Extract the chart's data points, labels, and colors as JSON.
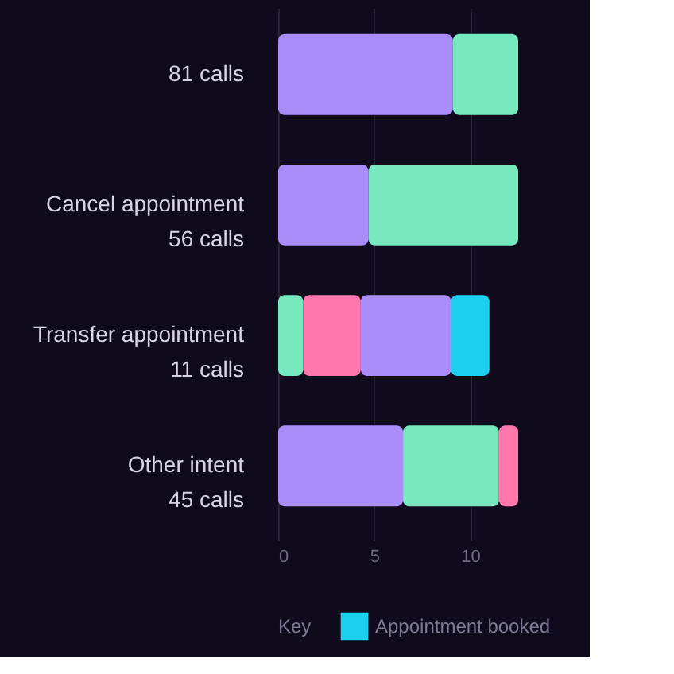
{
  "chart_data": {
    "type": "bar",
    "orientation": "horizontal",
    "stacked": true,
    "categories": [
      "81 calls",
      "Cancel appointment\n56 calls",
      "Transfer appointment\n11 calls",
      "Other intent\n45 calls"
    ],
    "series": [
      {
        "color": "#78e8be",
        "values": [
          null,
          null,
          1.3,
          null
        ]
      },
      {
        "color": "#ff77ad",
        "values": [
          null,
          null,
          3.0,
          null
        ]
      },
      {
        "color": "#a98cf8",
        "values": [
          9.1,
          4.7,
          4.7,
          6.5
        ]
      },
      {
        "color": "#78e8be",
        "values": [
          3.4,
          7.8,
          null,
          5.0
        ]
      },
      {
        "color": "#ff77ad",
        "values": [
          null,
          null,
          null,
          1.0
        ]
      },
      {
        "name": "Appointment booked",
        "color": "#1ed0f0",
        "values": [
          null,
          null,
          2.0,
          null
        ]
      }
    ],
    "xlim": [
      0,
      12.5
    ],
    "xticks": [
      0,
      5,
      10
    ],
    "grid": "x",
    "legend": "bottom",
    "legend_title": "Key"
  }
}
